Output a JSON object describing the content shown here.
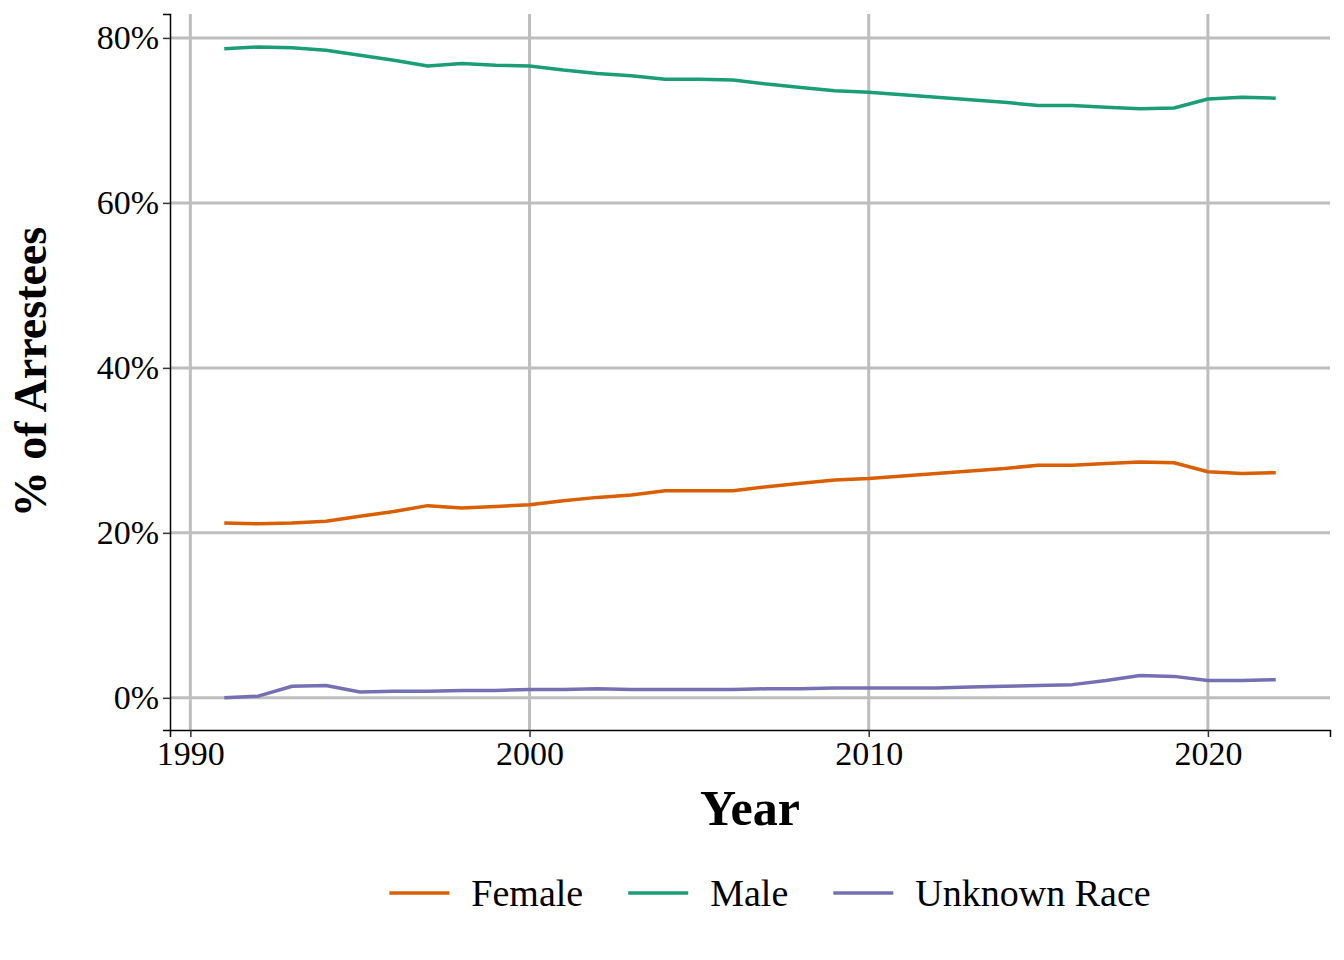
{
  "chart_data": {
    "type": "line",
    "x_label": "Year",
    "y_label": "% of Arrestees",
    "x": [
      1991,
      1992,
      1993,
      1994,
      1995,
      1996,
      1997,
      1998,
      1999,
      2000,
      2001,
      2002,
      2003,
      2004,
      2005,
      2006,
      2007,
      2008,
      2009,
      2010,
      2011,
      2012,
      2013,
      2014,
      2015,
      2016,
      2017,
      2018,
      2019,
      2020,
      2021,
      2022
    ],
    "series": [
      {
        "name": "Female",
        "color": "#d95f02",
        "values": [
          21.2,
          21.1,
          21.2,
          21.4,
          22.0,
          22.6,
          23.3,
          23.0,
          23.2,
          23.4,
          23.9,
          24.3,
          24.6,
          25.1,
          25.1,
          25.1,
          25.6,
          26.0,
          26.4,
          26.6,
          26.9,
          27.2,
          27.5,
          27.8,
          28.2,
          28.2,
          28.4,
          28.6,
          28.5,
          27.4,
          27.2,
          27.3
        ]
      },
      {
        "name": "Male",
        "color": "#1b9e77",
        "values": [
          78.7,
          78.9,
          78.8,
          78.5,
          77.9,
          77.3,
          76.6,
          76.9,
          76.7,
          76.6,
          76.1,
          75.7,
          75.4,
          75.0,
          75.0,
          74.9,
          74.4,
          74.0,
          73.6,
          73.4,
          73.1,
          72.8,
          72.5,
          72.2,
          71.8,
          71.8,
          71.6,
          71.4,
          71.5,
          72.6,
          72.8,
          72.7
        ]
      },
      {
        "name": "Unknown Race",
        "color": "#7570b3",
        "values": [
          0.0,
          0.2,
          1.4,
          1.5,
          0.7,
          0.8,
          0.8,
          0.9,
          0.9,
          1.0,
          1.0,
          1.1,
          1.0,
          1.0,
          1.0,
          1.0,
          1.1,
          1.1,
          1.2,
          1.2,
          1.2,
          1.2,
          1.3,
          1.4,
          1.5,
          1.6,
          2.1,
          2.7,
          2.6,
          2.1,
          2.1,
          2.2
        ]
      }
    ],
    "xlim": [
      1989.4,
      2023.6
    ],
    "xticks": [
      1990,
      2000,
      2010,
      2020
    ],
    "ylim": [
      -3.9,
      82.9
    ],
    "yticks": [
      {
        "value": 0,
        "label": "0%"
      },
      {
        "value": 20,
        "label": "20%"
      },
      {
        "value": 40,
        "label": "40%"
      },
      {
        "value": 60,
        "label": "60%"
      },
      {
        "value": 80,
        "label": "80%"
      }
    ],
    "grid": true,
    "legend": "bottom"
  }
}
